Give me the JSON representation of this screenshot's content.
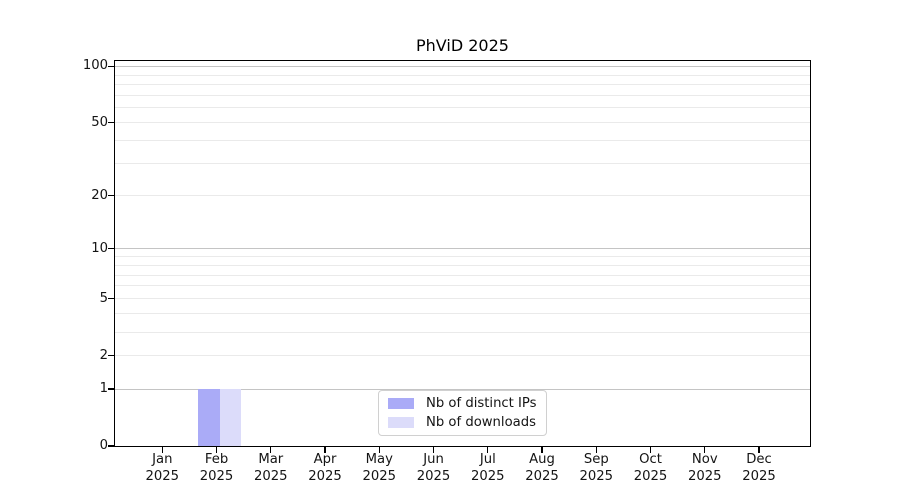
{
  "chart_data": {
    "type": "bar",
    "title": "PhViD 2025",
    "x": {
      "months": [
        "Jan",
        "Feb",
        "Mar",
        "Apr",
        "May",
        "Jun",
        "Jul",
        "Aug",
        "Sep",
        "Oct",
        "Nov",
        "Dec"
      ],
      "year": "2025"
    },
    "series": [
      {
        "name": "Nb of distinct IPs",
        "color": "#aaabf7",
        "values": [
          0,
          1,
          0,
          0,
          0,
          0,
          0,
          0,
          0,
          0,
          0,
          0
        ]
      },
      {
        "name": "Nb of downloads",
        "color": "#dcdcfa",
        "values": [
          0,
          1,
          0,
          0,
          0,
          0,
          0,
          0,
          0,
          0,
          0,
          0
        ]
      }
    ],
    "y_axis": {
      "scale": "log(1+y)",
      "tick_values": [
        0,
        1,
        2,
        5,
        10,
        20,
        50,
        100
      ],
      "ylim": [
        0,
        108
      ],
      "major_gridlines": [
        1,
        10,
        100
      ],
      "minor_gridlines": [
        2,
        3,
        4,
        5,
        6,
        7,
        8,
        9,
        20,
        30,
        40,
        50,
        60,
        70,
        80,
        90
      ]
    },
    "legend": {
      "position": "lower center",
      "entries": [
        "Nb of distinct IPs",
        "Nb of downloads"
      ]
    },
    "grid": true
  },
  "style": {
    "background": "#ffffff",
    "text_color": "#141414",
    "spine_color": "#000000",
    "grid_major_color": "#c4c4c4",
    "grid_minor_color": "#eaeaea",
    "bar_ips_color": "#aaabf7",
    "bar_downloads_color": "#dcdcfa",
    "legend_border_color": "#d0d0d0"
  }
}
